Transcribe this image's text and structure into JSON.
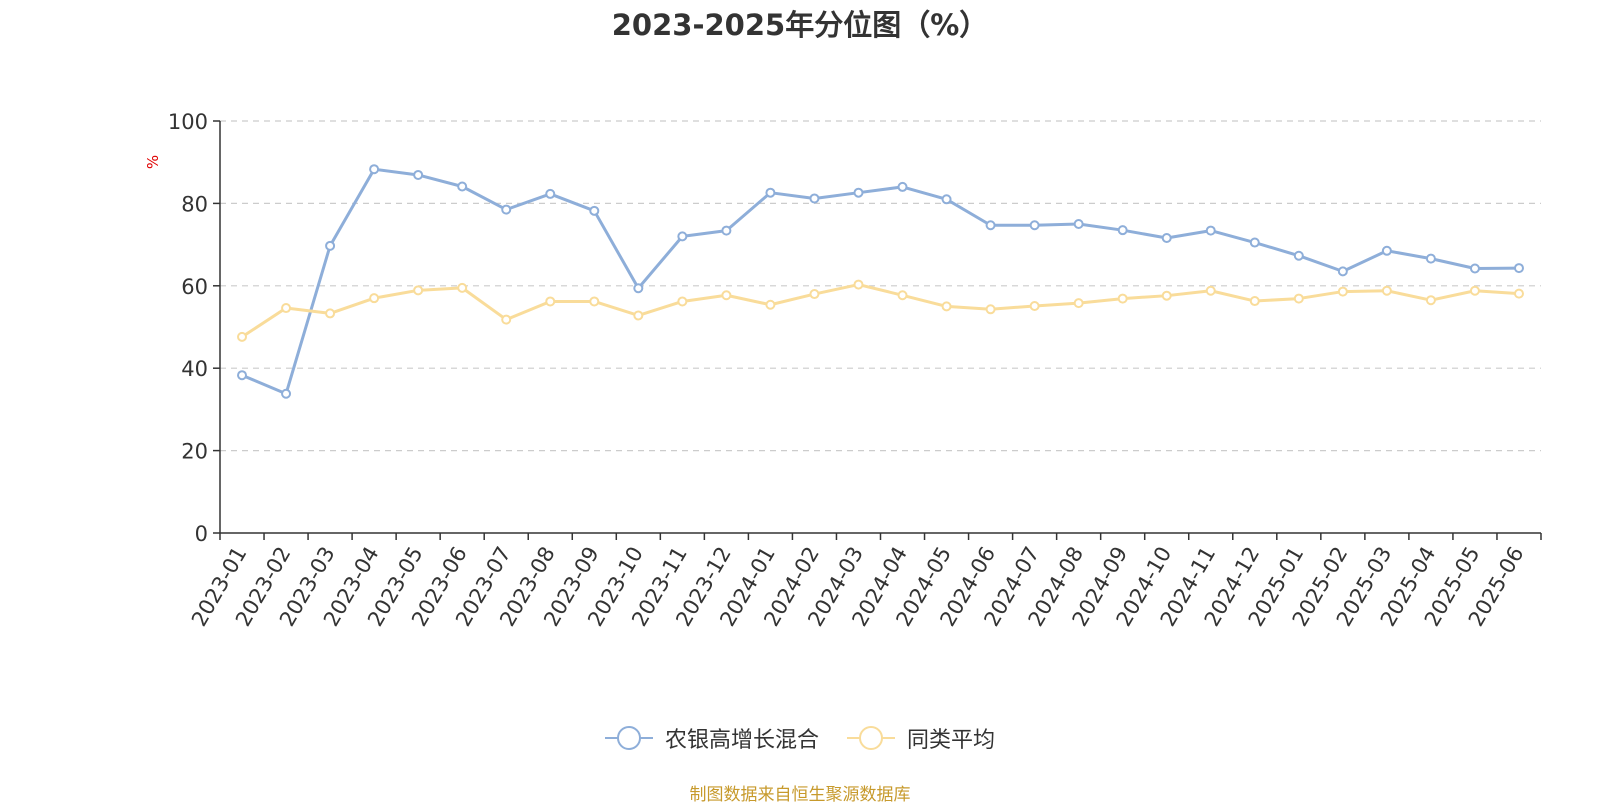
{
  "chart_data": {
    "type": "line",
    "title": "2023-2025年分位图（%）",
    "ylabel": "%",
    "xlabel": "",
    "ylim": [
      0,
      100
    ],
    "yticks": [
      "0",
      "20",
      "40",
      "60",
      "80",
      "100"
    ],
    "grid": true,
    "legend_position": "bottom-center",
    "categories": [
      "2023-01",
      "2023-02",
      "2023-03",
      "2023-04",
      "2023-05",
      "2023-06",
      "2023-07",
      "2023-08",
      "2023-09",
      "2023-10",
      "2023-11",
      "2023-12",
      "2024-01",
      "2024-02",
      "2024-03",
      "2024-04",
      "2024-05",
      "2024-06",
      "2024-07",
      "2024-08",
      "2024-09",
      "2024-10",
      "2024-11",
      "2024-12",
      "2025-01",
      "2025-02",
      "2025-03",
      "2025-04",
      "2025-05",
      "2025-06"
    ],
    "series": [
      {
        "name": "农银高增长混合",
        "color": "#8eaed9",
        "values": [
          38.3,
          33.8,
          69.7,
          88.3,
          86.9,
          84.1,
          78.5,
          82.3,
          78.2,
          59.4,
          72.0,
          73.4,
          82.6,
          81.2,
          82.6,
          84.0,
          81.0,
          74.7,
          74.7,
          75.0,
          73.5,
          71.6,
          73.4,
          70.5,
          67.3,
          63.5,
          68.5,
          66.6,
          64.2,
          64.3
        ]
      },
      {
        "name": "同类平均",
        "color": "#f9dc9a",
        "values": [
          47.6,
          54.6,
          53.3,
          57.0,
          58.9,
          59.5,
          51.8,
          56.2,
          56.2,
          52.8,
          56.2,
          57.7,
          55.4,
          58.0,
          60.3,
          57.7,
          55.0,
          54.3,
          55.1,
          55.8,
          56.9,
          57.6,
          58.8,
          56.3,
          56.9,
          58.6,
          58.8,
          56.5,
          58.8,
          58.1
        ]
      }
    ],
    "source": "制图数据来自恒生聚源数据库"
  }
}
